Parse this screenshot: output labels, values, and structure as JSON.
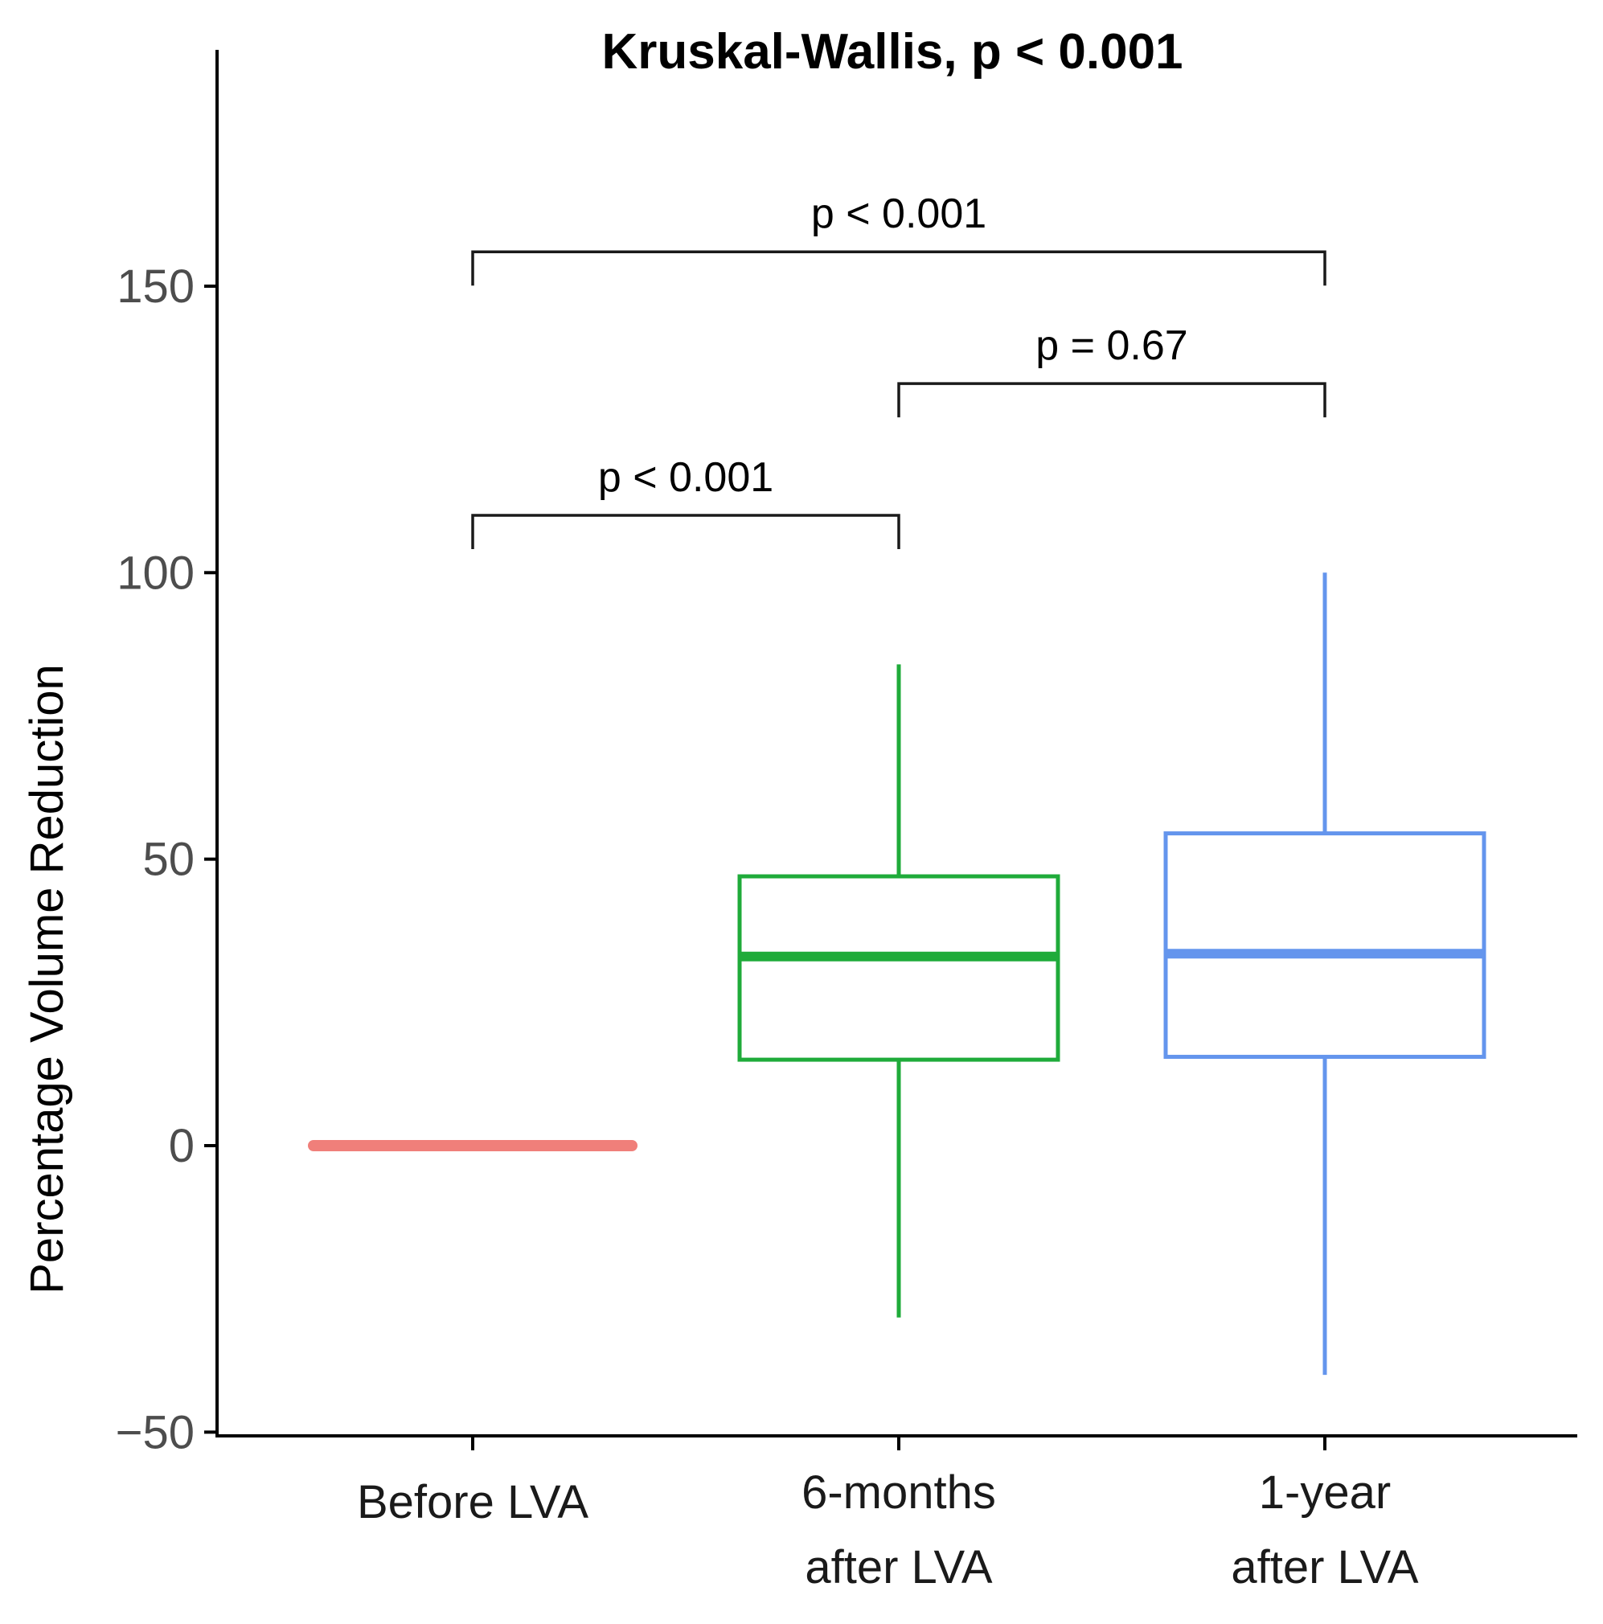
{
  "chart_data": {
    "type": "box",
    "title": "Kruskal-Wallis, p < 0.001",
    "xlabel": "",
    "ylabel": "Percentage Volume Reduction",
    "ylim": [
      -50,
      190
    ],
    "yticks": [
      -50,
      0,
      50,
      100,
      150
    ],
    "ytick_labels": [
      "−50",
      "0",
      "50",
      "100",
      "150"
    ],
    "grid": false,
    "legend": "none",
    "groups": [
      {
        "name": "Before LVA",
        "label_lines": [
          "Before LVA"
        ],
        "color": "#f07f7a",
        "min": 0,
        "q1": 0,
        "median": 0,
        "q3": 0,
        "max": 0
      },
      {
        "name": "6-months after LVA",
        "label_lines": [
          "6-months",
          "after LVA"
        ],
        "color": "#1fab3a",
        "min": -30,
        "q1": 15,
        "median": 33,
        "q3": 47,
        "max": 84
      },
      {
        "name": "1-year after LVA",
        "label_lines": [
          "1-year",
          "after LVA"
        ],
        "color": "#6495ed",
        "min": -40,
        "q1": 15.5,
        "median": 33.5,
        "q3": 54.5,
        "max": 100
      }
    ],
    "comparisons": [
      {
        "from": 0,
        "to": 1,
        "y": 110,
        "label": "p < 0.001"
      },
      {
        "from": 1,
        "to": 2,
        "y": 133,
        "label": "p = 0.67"
      },
      {
        "from": 0,
        "to": 2,
        "y": 156,
        "label": "p < 0.001"
      }
    ]
  }
}
